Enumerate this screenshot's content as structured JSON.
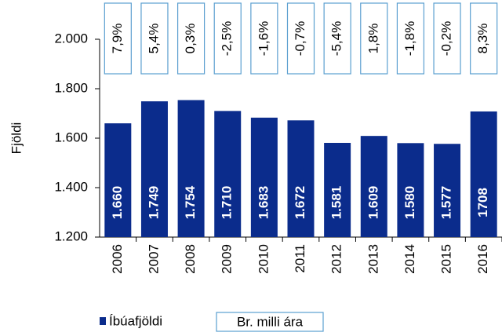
{
  "chart_data": {
    "type": "bar",
    "categories": [
      "2006",
      "2007",
      "2008",
      "2009",
      "2010",
      "2011",
      "2012",
      "2013",
      "2014",
      "2015",
      "2016"
    ],
    "y_label": "Fjöldi",
    "series": [
      {
        "name": "Íbúafjöldi",
        "color": "#0b2c8c",
        "values": [
          1660,
          1749,
          1754,
          1710,
          1683,
          1672,
          1581,
          1609,
          1580,
          1577,
          1708
        ],
        "value_labels": [
          "1.660",
          "1.749",
          "1.754",
          "1.710",
          "1.683",
          "1.672",
          "1.581",
          "1.609",
          "1.580",
          "1.577",
          "1708"
        ]
      },
      {
        "name": "Br. milli ára",
        "color": "#5b9fd0",
        "values": [
          7.9,
          5.4,
          0.3,
          -2.5,
          -1.6,
          -0.7,
          -5.4,
          1.8,
          -1.8,
          -0.2,
          8.3
        ],
        "value_labels": [
          "7,9%",
          "5,4%",
          "0,3%",
          "-2,5%",
          "-1,6%",
          "-0,7%",
          "-5,4%",
          "1,8%",
          "-1,8%",
          "-0,2%",
          "8,3%"
        ]
      }
    ],
    "ylim": [
      1200,
      2000
    ],
    "yticks": [
      {
        "value": 1200,
        "label": "1.200"
      },
      {
        "value": 1400,
        "label": "1.400"
      },
      {
        "value": 1600,
        "label": "1.600"
      },
      {
        "value": 1800,
        "label": "1.800"
      },
      {
        "value": 2000,
        "label": "2.000"
      }
    ]
  }
}
